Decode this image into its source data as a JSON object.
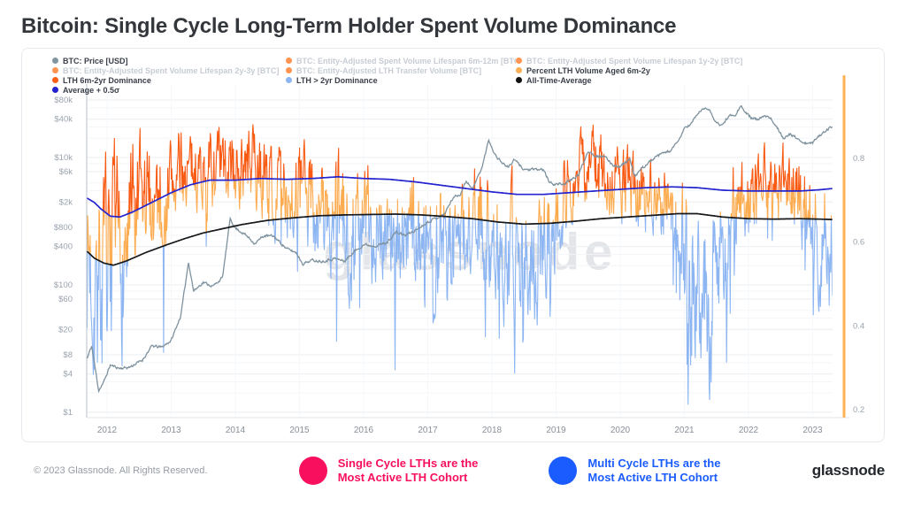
{
  "title": "Bitcoin: Single Cycle Long-Term Holder Spent Volume Dominance",
  "watermark": "glassnode",
  "footer": {
    "copyright": "© 2023 Glassnode. All Rights Reserved.",
    "logo": "glassnode"
  },
  "annotations": [
    {
      "icon": "circle",
      "color": "#f8105f",
      "line1": "Single Cycle LTHs are the",
      "line2": "Most Active LTH Cohort"
    },
    {
      "icon": "circle",
      "color": "#1b5cff",
      "line1": "Multi Cycle LTHs are the",
      "line2": "Most Active LTH Cohort"
    }
  ],
  "legend": {
    "items": [
      {
        "label": "BTC: Price [USD]",
        "color": "#8296a2",
        "muted": false
      },
      {
        "label": "BTC: Entity-Adjusted Spent Volume Lifespan 6m-12m [BTC]",
        "color": "#ff9351",
        "muted": true
      },
      {
        "label": "BTC: Entity-Adjusted Spent Volume Lifespan 1y-2y [BTC]",
        "color": "#ff9351",
        "muted": true
      },
      {
        "label": "BTC: Entity-Adjusted Spent Volume Lifespan 2y-3y [BTC]",
        "color": "#ff9351",
        "muted": true
      },
      {
        "label": "BTC: Entity-Adjusted LTH Transfer Volume [BTC]",
        "color": "#ff9351",
        "muted": true
      },
      {
        "label": "Percent LTH Volume Aged 6m-2y",
        "color": "#fcae54",
        "muted": false
      },
      {
        "label": "LTH 6m-2yr Dominance",
        "color": "#f95f16",
        "muted": false
      },
      {
        "label": "LTH > 2yr Dominance",
        "color": "#8cb5f2",
        "muted": false
      },
      {
        "label": "All-Time-Average",
        "color": "#111111",
        "muted": false
      },
      {
        "label": "Average + 0.5σ",
        "color": "#2323cd",
        "muted": false
      }
    ]
  },
  "chart_data": {
    "type": "line",
    "title": "Bitcoin: Single Cycle Long-Term Holder Spent Volume Dominance",
    "x_axis": {
      "ticks": [
        2012,
        2013,
        2014,
        2015,
        2016,
        2017,
        2018,
        2019,
        2020,
        2021,
        2022,
        2023
      ],
      "range": [
        2011.69,
        2023.49
      ]
    },
    "y_left": {
      "scale": "log",
      "unit": "USD",
      "ticks": [
        {
          "label": "$80k",
          "v": 80000
        },
        {
          "label": "$40k",
          "v": 40000
        },
        {
          "label": "$10k",
          "v": 10000
        },
        {
          "label": "$6k",
          "v": 6000
        },
        {
          "label": "$2k",
          "v": 2000
        },
        {
          "label": "$800",
          "v": 800
        },
        {
          "label": "$400",
          "v": 400
        },
        {
          "label": "$100",
          "v": 100
        },
        {
          "label": "$60",
          "v": 60
        },
        {
          "label": "$20",
          "v": 20
        },
        {
          "label": "$8",
          "v": 8
        },
        {
          "label": "$4",
          "v": 4
        },
        {
          "label": "$1",
          "v": 1
        }
      ]
    },
    "y_right": {
      "scale": "linear",
      "range": [
        0.17,
        0.98
      ],
      "ticks": [
        {
          "label": "0.8",
          "v": 0.8
        },
        {
          "label": "0.6",
          "v": 0.6
        },
        {
          "label": "0.4",
          "v": 0.4
        },
        {
          "label": "0.2",
          "v": 0.2
        }
      ]
    },
    "grid": {
      "horizontal": true,
      "vertical": false
    },
    "series": {
      "btc_price": {
        "name": "BTC: Price [USD]",
        "color": "#7e929e",
        "axis": "left",
        "points": [
          [
            2011.69,
            7
          ],
          [
            2011.76,
            11
          ],
          [
            2011.87,
            2.2
          ],
          [
            2011.95,
            3.0
          ],
          [
            2012.05,
            5.5
          ],
          [
            2012.2,
            4.9
          ],
          [
            2012.35,
            5.1
          ],
          [
            2012.55,
            6.6
          ],
          [
            2012.7,
            11
          ],
          [
            2012.85,
            10.5
          ],
          [
            2013.0,
            13.4
          ],
          [
            2013.15,
            33
          ],
          [
            2013.27,
            230
          ],
          [
            2013.35,
            80
          ],
          [
            2013.5,
            110
          ],
          [
            2013.65,
            95
          ],
          [
            2013.8,
            130
          ],
          [
            2013.92,
            1100
          ],
          [
            2014.0,
            780
          ],
          [
            2014.15,
            620
          ],
          [
            2014.3,
            450
          ],
          [
            2014.45,
            590
          ],
          [
            2014.6,
            580
          ],
          [
            2014.8,
            370
          ],
          [
            2014.95,
            320
          ],
          [
            2015.05,
            215
          ],
          [
            2015.2,
            245
          ],
          [
            2015.35,
            235
          ],
          [
            2015.55,
            260
          ],
          [
            2015.7,
            235
          ],
          [
            2015.85,
            330
          ],
          [
            2016.0,
            430
          ],
          [
            2016.15,
            410
          ],
          [
            2016.35,
            450
          ],
          [
            2016.5,
            670
          ],
          [
            2016.65,
            600
          ],
          [
            2016.8,
            710
          ],
          [
            2017.0,
            980
          ],
          [
            2017.15,
            1150
          ],
          [
            2017.25,
            1250
          ],
          [
            2017.4,
            2400
          ],
          [
            2017.5,
            2600
          ],
          [
            2017.6,
            4300
          ],
          [
            2017.7,
            3200
          ],
          [
            2017.85,
            7200
          ],
          [
            2017.95,
            19000
          ],
          [
            2018.05,
            11000
          ],
          [
            2018.15,
            8500
          ],
          [
            2018.25,
            7000
          ],
          [
            2018.35,
            9200
          ],
          [
            2018.5,
            6500
          ],
          [
            2018.65,
            6400
          ],
          [
            2018.8,
            6500
          ],
          [
            2018.9,
            4000
          ],
          [
            2019.0,
            3800
          ],
          [
            2019.15,
            3900
          ],
          [
            2019.35,
            5300
          ],
          [
            2019.5,
            12800
          ],
          [
            2019.6,
            10800
          ],
          [
            2019.75,
            10300
          ],
          [
            2019.9,
            7500
          ],
          [
            2020.0,
            7200
          ],
          [
            2020.15,
            9500
          ],
          [
            2020.22,
            5000
          ],
          [
            2020.35,
            6900
          ],
          [
            2020.5,
            9200
          ],
          [
            2020.65,
            11500
          ],
          [
            2020.8,
            13000
          ],
          [
            2020.92,
            19000
          ],
          [
            2021.0,
            29000
          ],
          [
            2021.1,
            33000
          ],
          [
            2021.2,
            48000
          ],
          [
            2021.3,
            58500
          ],
          [
            2021.4,
            57000
          ],
          [
            2021.48,
            35000
          ],
          [
            2021.58,
            32000
          ],
          [
            2021.7,
            45000
          ],
          [
            2021.8,
            48000
          ],
          [
            2021.88,
            66000
          ],
          [
            2021.95,
            50000
          ],
          [
            2022.05,
            42000
          ],
          [
            2022.15,
            38500
          ],
          [
            2022.25,
            45000
          ],
          [
            2022.35,
            40000
          ],
          [
            2022.45,
            29500
          ],
          [
            2022.55,
            20000
          ],
          [
            2022.65,
            23000
          ],
          [
            2022.78,
            19500
          ],
          [
            2022.88,
            16500
          ],
          [
            2023.0,
            16800
          ],
          [
            2023.07,
            21000
          ],
          [
            2023.15,
            23500
          ],
          [
            2023.22,
            28000
          ],
          [
            2023.31,
            29800
          ]
        ]
      },
      "dominance": {
        "name": "LTH 6m-2yr Dominance / LTH > 2yr Dominance / Percent LTH Volume Aged 6m-2y",
        "axis": "right",
        "zone_colors": {
          "above_avg": "#f95a12",
          "between": "#fcab4f",
          "below_avg": "#8cb5f2"
        },
        "noise_seed": 7,
        "step": 0.008,
        "clamp": [
          0.212,
          0.905
        ],
        "envelope": [
          [
            2011.69,
            0.58,
            0.28
          ],
          [
            2011.8,
            0.52,
            0.3
          ],
          [
            2011.95,
            0.5,
            0.3
          ],
          [
            2012.15,
            0.54,
            0.28
          ],
          [
            2012.4,
            0.62,
            0.22
          ],
          [
            2012.65,
            0.7,
            0.17
          ],
          [
            2012.9,
            0.72,
            0.16
          ],
          [
            2013.1,
            0.76,
            0.12
          ],
          [
            2013.4,
            0.78,
            0.1
          ],
          [
            2013.7,
            0.76,
            0.12
          ],
          [
            2014.0,
            0.77,
            0.11
          ],
          [
            2014.3,
            0.78,
            0.11
          ],
          [
            2014.6,
            0.73,
            0.13
          ],
          [
            2014.9,
            0.72,
            0.14
          ],
          [
            2015.2,
            0.7,
            0.15
          ],
          [
            2015.5,
            0.64,
            0.18
          ],
          [
            2015.7,
            0.62,
            0.2
          ],
          [
            2016.0,
            0.66,
            0.15
          ],
          [
            2016.3,
            0.64,
            0.16
          ],
          [
            2016.6,
            0.62,
            0.17
          ],
          [
            2016.9,
            0.63,
            0.16
          ],
          [
            2017.2,
            0.6,
            0.17
          ],
          [
            2017.5,
            0.62,
            0.16
          ],
          [
            2017.8,
            0.65,
            0.15
          ],
          [
            2018.0,
            0.62,
            0.16
          ],
          [
            2018.3,
            0.56,
            0.18
          ],
          [
            2018.6,
            0.54,
            0.18
          ],
          [
            2018.9,
            0.62,
            0.15
          ],
          [
            2019.1,
            0.7,
            0.13
          ],
          [
            2019.4,
            0.78,
            0.1
          ],
          [
            2019.7,
            0.77,
            0.11
          ],
          [
            2020.0,
            0.74,
            0.1
          ],
          [
            2020.3,
            0.72,
            0.1
          ],
          [
            2020.6,
            0.71,
            0.1
          ],
          [
            2020.9,
            0.67,
            0.13
          ],
          [
            2021.1,
            0.52,
            0.25
          ],
          [
            2021.35,
            0.48,
            0.26
          ],
          [
            2021.6,
            0.6,
            0.18
          ],
          [
            2021.85,
            0.7,
            0.12
          ],
          [
            2022.1,
            0.7,
            0.12
          ],
          [
            2022.4,
            0.74,
            0.11
          ],
          [
            2022.7,
            0.72,
            0.12
          ],
          [
            2022.95,
            0.66,
            0.14
          ],
          [
            2023.1,
            0.6,
            0.16
          ],
          [
            2023.31,
            0.62,
            0.15
          ]
        ]
      },
      "average_plus_half_sigma": {
        "name": "Average + 0.5σ",
        "color": "#2424cf",
        "axis": "right",
        "points": [
          [
            2011.69,
            0.705
          ],
          [
            2011.8,
            0.695
          ],
          [
            2011.9,
            0.68
          ],
          [
            2012.05,
            0.662
          ],
          [
            2012.2,
            0.66
          ],
          [
            2012.4,
            0.672
          ],
          [
            2012.7,
            0.695
          ],
          [
            2013.0,
            0.718
          ],
          [
            2013.3,
            0.737
          ],
          [
            2013.6,
            0.748
          ],
          [
            2014.0,
            0.748
          ],
          [
            2014.4,
            0.752
          ],
          [
            2014.8,
            0.75
          ],
          [
            2015.2,
            0.752
          ],
          [
            2015.6,
            0.756
          ],
          [
            2016.0,
            0.752
          ],
          [
            2016.4,
            0.75
          ],
          [
            2016.8,
            0.744
          ],
          [
            2017.2,
            0.736
          ],
          [
            2017.6,
            0.728
          ],
          [
            2018.0,
            0.72
          ],
          [
            2018.4,
            0.714
          ],
          [
            2018.8,
            0.714
          ],
          [
            2019.2,
            0.718
          ],
          [
            2019.6,
            0.722
          ],
          [
            2020.0,
            0.726
          ],
          [
            2020.4,
            0.73
          ],
          [
            2020.8,
            0.732
          ],
          [
            2021.2,
            0.73
          ],
          [
            2021.6,
            0.724
          ],
          [
            2022.0,
            0.722
          ],
          [
            2022.4,
            0.722
          ],
          [
            2022.8,
            0.722
          ],
          [
            2023.1,
            0.725
          ],
          [
            2023.31,
            0.728
          ]
        ]
      },
      "all_time_average": {
        "name": "All-Time-Average",
        "color": "#17181a",
        "axis": "right",
        "points": [
          [
            2011.69,
            0.578
          ],
          [
            2011.8,
            0.562
          ],
          [
            2011.95,
            0.55
          ],
          [
            2012.1,
            0.545
          ],
          [
            2012.3,
            0.555
          ],
          [
            2012.6,
            0.575
          ],
          [
            2012.9,
            0.592
          ],
          [
            2013.2,
            0.608
          ],
          [
            2013.5,
            0.622
          ],
          [
            2013.8,
            0.632
          ],
          [
            2014.1,
            0.642
          ],
          [
            2014.5,
            0.652
          ],
          [
            2014.9,
            0.658
          ],
          [
            2015.3,
            0.663
          ],
          [
            2015.7,
            0.665
          ],
          [
            2016.1,
            0.666
          ],
          [
            2016.5,
            0.667
          ],
          [
            2016.9,
            0.665
          ],
          [
            2017.3,
            0.661
          ],
          [
            2017.7,
            0.656
          ],
          [
            2018.1,
            0.648
          ],
          [
            2018.5,
            0.643
          ],
          [
            2018.9,
            0.645
          ],
          [
            2019.3,
            0.65
          ],
          [
            2019.7,
            0.656
          ],
          [
            2020.1,
            0.66
          ],
          [
            2020.5,
            0.664
          ],
          [
            2020.9,
            0.668
          ],
          [
            2021.2,
            0.668
          ],
          [
            2021.6,
            0.66
          ],
          [
            2022.0,
            0.656
          ],
          [
            2022.4,
            0.655
          ],
          [
            2022.8,
            0.656
          ],
          [
            2023.1,
            0.655
          ],
          [
            2023.31,
            0.654
          ]
        ]
      },
      "current_marker": {
        "name": "Percent LTH Volume Aged 6m-2y (latest)",
        "color": "#ffb254",
        "t": 2023.49
      }
    }
  }
}
